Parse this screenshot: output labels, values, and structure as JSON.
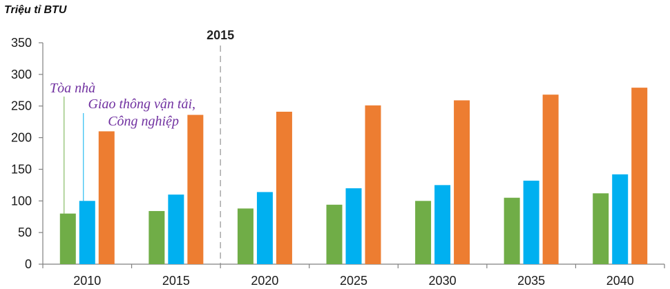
{
  "chart_data": {
    "type": "bar",
    "ylabel": "Triệu tỉ BTU",
    "categories": [
      "2010",
      "2015",
      "2020",
      "2025",
      "2030",
      "2035",
      "2040"
    ],
    "series": [
      {
        "name": "Tòa nhà",
        "color": "#70ad47",
        "values": [
          80,
          84,
          88,
          94,
          100,
          105,
          112
        ]
      },
      {
        "name": "Giao thông vận tải,",
        "color": "#00b0f0",
        "values": [
          100,
          110,
          114,
          120,
          125,
          132,
          142
        ]
      },
      {
        "name": "Công nghiệp",
        "color": "#ed7d31",
        "values": [
          210,
          236,
          241,
          251,
          259,
          268,
          279
        ]
      }
    ],
    "ylim": [
      0,
      350
    ],
    "yticks": [
      0,
      50,
      100,
      150,
      200,
      250,
      300,
      350
    ],
    "grid": false,
    "legend": "inline annotations",
    "marker_line": {
      "label": "2015"
    }
  }
}
